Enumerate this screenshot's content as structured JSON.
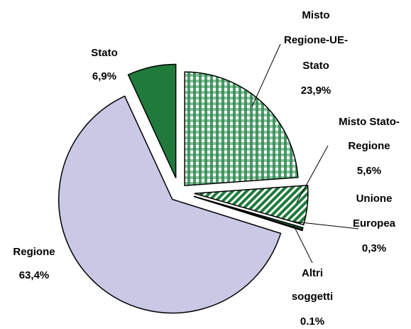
{
  "chart_data": {
    "type": "pie",
    "categories": [
      [
        "Misto",
        "Regione-UE-",
        "Stato"
      ],
      [
        "Misto Stato-",
        "Regione"
      ],
      [
        "Unione",
        "Europea"
      ],
      [
        "Altri",
        "soggetti"
      ],
      [
        "Regione"
      ],
      [
        "Stato"
      ]
    ],
    "values": [
      23.9,
      5.6,
      0.3,
      0.1,
      63.4,
      6.9
    ],
    "value_labels": [
      "23,9%",
      "5,6%",
      "0,3%",
      "0.1%",
      "63,4%",
      "6,9%"
    ],
    "colors": [
      "#1f7a3c",
      "#1f7a3c",
      "#1f7a3c",
      "#1f7a3c",
      "#c9c9e6",
      "#1f7a3c"
    ],
    "patterns": [
      "check",
      "stripe",
      null,
      null,
      null,
      null
    ]
  }
}
